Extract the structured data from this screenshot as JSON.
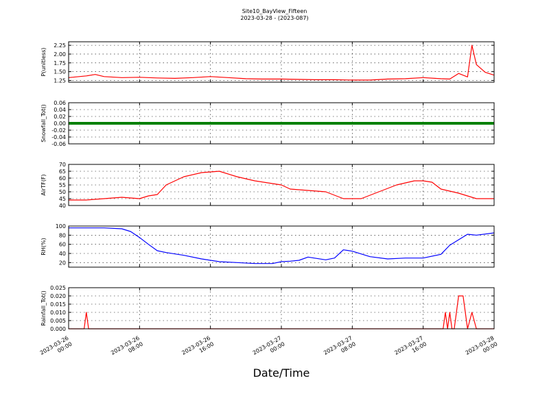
{
  "figure": {
    "title": "Site10_BayView_Fifteen",
    "subtitle": "2023-03-28 - (2023-087)",
    "xlabel": "Date/Time"
  },
  "x_ticks": [
    {
      "line1": "2023-03-26",
      "line2": "00:00"
    },
    {
      "line1": "2023-03-26",
      "line2": "08:00"
    },
    {
      "line1": "2023-03-26",
      "line2": "16:00"
    },
    {
      "line1": "2023-03-27",
      "line2": "00:00"
    },
    {
      "line1": "2023-03-27",
      "line2": "08:00"
    },
    {
      "line1": "2023-03-27",
      "line2": "16:00"
    },
    {
      "line1": "2023-03-28",
      "line2": "00:00"
    }
  ],
  "chart_data": [
    {
      "type": "line",
      "ylabel": "P(unitless)",
      "color": "#ff0000",
      "ylim": [
        1.2,
        2.35
      ],
      "yticks": [
        "1.25",
        "1.50",
        "1.75",
        "2.00",
        "2.25"
      ],
      "x": [
        "2023-03-26 00:00",
        "2023-03-26 02:00",
        "2023-03-26 03:00",
        "2023-03-26 04:00",
        "2023-03-26 06:00",
        "2023-03-26 08:00",
        "2023-03-26 10:00",
        "2023-03-26 12:00",
        "2023-03-26 14:00",
        "2023-03-26 16:00",
        "2023-03-26 18:00",
        "2023-03-26 20:00",
        "2023-03-26 22:00",
        "2023-03-27 00:00",
        "2023-03-27 02:00",
        "2023-03-27 04:00",
        "2023-03-27 06:00",
        "2023-03-27 08:00",
        "2023-03-27 10:00",
        "2023-03-27 12:00",
        "2023-03-27 14:00",
        "2023-03-27 16:00",
        "2023-03-27 18:00",
        "2023-03-27 19:00",
        "2023-03-27 20:00",
        "2023-03-27 21:00",
        "2023-03-27 21:30",
        "2023-03-27 22:00",
        "2023-03-27 23:00",
        "2023-03-28 00:00"
      ],
      "values": [
        1.33,
        1.38,
        1.42,
        1.36,
        1.33,
        1.34,
        1.32,
        1.31,
        1.33,
        1.36,
        1.33,
        1.3,
        1.29,
        1.29,
        1.28,
        1.27,
        1.27,
        1.26,
        1.26,
        1.29,
        1.3,
        1.33,
        1.3,
        1.29,
        1.45,
        1.35,
        2.25,
        1.7,
        1.48,
        1.4
      ]
    },
    {
      "type": "line",
      "ylabel": "Snowfall_Tot()",
      "color": "#008000",
      "ylim": [
        -0.06,
        0.06
      ],
      "yticks": [
        "-0.06",
        "-0.04",
        "-0.02",
        "0.00",
        "0.02",
        "0.04",
        "0.06"
      ],
      "x": [
        "2023-03-26 00:00",
        "2023-03-28 00:00"
      ],
      "values": [
        0.0,
        0.0
      ]
    },
    {
      "type": "line",
      "ylabel": "AirTF(F)",
      "color": "#ff0000",
      "ylim": [
        40,
        70
      ],
      "yticks": [
        "40",
        "45",
        "50",
        "55",
        "60",
        "65",
        "70"
      ],
      "x": [
        "2023-03-26 00:00",
        "2023-03-26 02:00",
        "2023-03-26 04:00",
        "2023-03-26 06:00",
        "2023-03-26 08:00",
        "2023-03-26 09:00",
        "2023-03-26 10:00",
        "2023-03-26 11:00",
        "2023-03-26 12:00",
        "2023-03-26 13:00",
        "2023-03-26 15:00",
        "2023-03-26 17:00",
        "2023-03-26 19:00",
        "2023-03-26 21:00",
        "2023-03-26 23:00",
        "2023-03-27 00:00",
        "2023-03-27 01:00",
        "2023-03-27 03:00",
        "2023-03-27 05:00",
        "2023-03-27 07:00",
        "2023-03-27 09:00",
        "2023-03-27 11:00",
        "2023-03-27 13:00",
        "2023-03-27 15:00",
        "2023-03-27 16:00",
        "2023-03-27 17:00",
        "2023-03-27 18:00",
        "2023-03-27 20:00",
        "2023-03-27 22:00",
        "2023-03-28 00:00"
      ],
      "values": [
        44,
        44,
        45,
        46,
        45,
        47,
        48,
        55,
        58,
        61,
        64,
        65,
        61,
        58,
        56,
        55,
        52,
        51,
        50,
        45,
        45,
        50,
        55,
        58,
        58,
        57,
        52,
        49,
        45,
        45
      ]
    },
    {
      "type": "line",
      "ylabel": "RH(%)",
      "color": "#0000ff",
      "ylim": [
        10,
        100
      ],
      "yticks": [
        "20",
        "40",
        "60",
        "80",
        "100"
      ],
      "x": [
        "2023-03-26 00:00",
        "2023-03-26 04:00",
        "2023-03-26 06:00",
        "2023-03-26 07:00",
        "2023-03-26 08:00",
        "2023-03-26 09:00",
        "2023-03-26 10:00",
        "2023-03-26 11:00",
        "2023-03-26 13:00",
        "2023-03-26 15:00",
        "2023-03-26 17:00",
        "2023-03-26 19:00",
        "2023-03-26 21:00",
        "2023-03-26 23:00",
        "2023-03-27 00:00",
        "2023-03-27 01:00",
        "2023-03-27 02:00",
        "2023-03-27 03:00",
        "2023-03-27 05:00",
        "2023-03-27 06:00",
        "2023-03-27 07:00",
        "2023-03-27 08:00",
        "2023-03-27 10:00",
        "2023-03-27 12:00",
        "2023-03-27 14:00",
        "2023-03-27 16:00",
        "2023-03-27 18:00",
        "2023-03-27 19:00",
        "2023-03-27 20:00",
        "2023-03-27 21:00",
        "2023-03-27 22:00",
        "2023-03-28 00:00"
      ],
      "values": [
        96,
        96,
        94,
        88,
        75,
        60,
        46,
        42,
        36,
        28,
        22,
        20,
        18,
        18,
        22,
        23,
        25,
        32,
        26,
        30,
        48,
        45,
        33,
        28,
        30,
        30,
        38,
        58,
        70,
        82,
        80,
        85
      ]
    },
    {
      "type": "line",
      "ylabel": "Rainfall_Tot()",
      "color": "#ff0000",
      "ylim": [
        0.0,
        0.025
      ],
      "yticks": [
        "0.000",
        "0.005",
        "0.010",
        "0.015",
        "0.020",
        "0.025"
      ],
      "x": [
        "2023-03-26 00:00",
        "2023-03-26 01:45",
        "2023-03-26 02:00",
        "2023-03-26 02:15",
        "2023-03-27 18:15",
        "2023-03-27 18:30",
        "2023-03-27 18:45",
        "2023-03-27 19:00",
        "2023-03-27 19:15",
        "2023-03-27 19:30",
        "2023-03-27 20:00",
        "2023-03-27 20:30",
        "2023-03-27 21:00",
        "2023-03-27 21:30",
        "2023-03-27 22:00",
        "2023-03-27 22:15",
        "2023-03-27 22:30",
        "2023-03-28 00:00"
      ],
      "values": [
        0,
        0,
        0.01,
        0,
        0,
        0.01,
        0,
        0.01,
        0,
        0,
        0.02,
        0.02,
        0,
        0.01,
        0,
        0,
        0,
        0
      ]
    }
  ]
}
